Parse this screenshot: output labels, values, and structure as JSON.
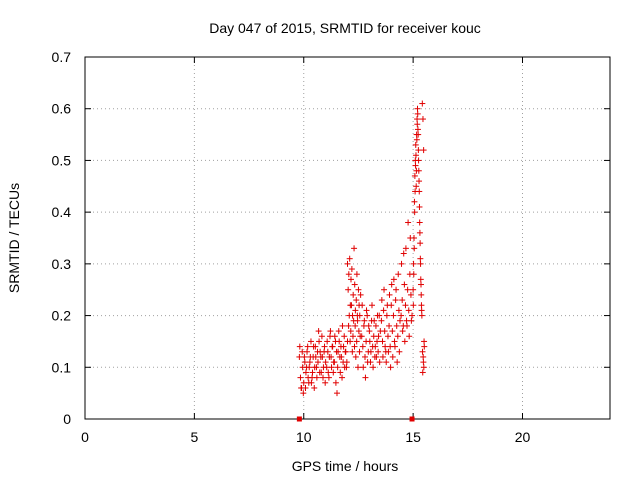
{
  "chart_data": {
    "type": "scatter",
    "title": "Day 047 of 2015, SRMTID for receiver kouc",
    "xlabel": "GPS time / hours",
    "ylabel": "SRMTID / TECUs",
    "xlim": [
      0,
      24
    ],
    "ylim": [
      0,
      0.7
    ],
    "xticks": [
      0,
      5,
      10,
      15,
      20
    ],
    "xtick_labels": [
      "0",
      "5",
      "10",
      "15",
      "20"
    ],
    "yticks": [
      0,
      0.1,
      0.2,
      0.3,
      0.4,
      0.5,
      0.6,
      0.7
    ],
    "ytick_labels": [
      "0",
      "0.1",
      "0.2",
      "0.3",
      "0.4",
      "0.5",
      "0.6",
      "0.7"
    ],
    "grid": true,
    "marker": "plus",
    "colors": {
      "series": "#e00000",
      "grid": "#a0a0a0",
      "axis": "#000000"
    },
    "series": [
      {
        "name": "SRMTID",
        "x": [
          9.8,
          9.85,
          9.9,
          9.95,
          10.0,
          10.05,
          10.1,
          10.15,
          10.2,
          10.25,
          10.3,
          10.35,
          10.4,
          10.45,
          10.5,
          10.55,
          10.6,
          10.65,
          10.7,
          10.75,
          10.8,
          10.85,
          10.9,
          10.95,
          11.0,
          9.82,
          9.88,
          9.93,
          9.98,
          10.03,
          10.08,
          10.13,
          10.18,
          10.23,
          10.28,
          10.33,
          10.38,
          10.43,
          10.48,
          10.53,
          10.58,
          10.63,
          10.68,
          10.73,
          10.78,
          10.83,
          10.88,
          10.93,
          10.98,
          11.05,
          11.1,
          11.15,
          11.2,
          11.25,
          11.3,
          11.35,
          11.4,
          11.45,
          11.5,
          11.55,
          11.6,
          11.65,
          11.7,
          11.75,
          11.8,
          11.85,
          11.9,
          11.95,
          12.0,
          11.07,
          11.12,
          11.17,
          11.22,
          11.27,
          11.32,
          11.37,
          11.42,
          11.47,
          11.52,
          11.57,
          11.62,
          11.67,
          11.72,
          11.77,
          11.82,
          11.87,
          11.92,
          11.97,
          12.0,
          12.03,
          12.06,
          12.1,
          12.13,
          12.16,
          12.2,
          12.23,
          12.26,
          12.3,
          12.33,
          12.36,
          12.4,
          12.43,
          12.46,
          12.5,
          12.53,
          12.56,
          12.6,
          12.05,
          12.08,
          12.12,
          12.15,
          12.18,
          12.22,
          12.25,
          12.28,
          12.32,
          12.35,
          12.38,
          12.42,
          12.45,
          12.48,
          12.52,
          12.55,
          12.58,
          12.65,
          12.7,
          12.75,
          12.8,
          12.85,
          12.9,
          12.95,
          13.0,
          13.05,
          13.1,
          13.15,
          13.2,
          13.25,
          13.3,
          13.35,
          13.4,
          13.45,
          13.5,
          12.67,
          12.72,
          12.77,
          12.82,
          12.87,
          12.92,
          12.97,
          13.02,
          13.07,
          13.12,
          13.17,
          13.22,
          13.27,
          13.32,
          13.37,
          13.42,
          13.47,
          13.55,
          13.6,
          13.65,
          13.7,
          13.75,
          13.8,
          13.85,
          13.9,
          13.95,
          14.0,
          14.05,
          14.1,
          14.15,
          14.2,
          14.25,
          14.3,
          14.35,
          14.4,
          13.57,
          13.62,
          13.67,
          13.72,
          13.77,
          13.82,
          13.87,
          13.92,
          13.97,
          14.02,
          14.07,
          14.12,
          14.17,
          14.22,
          14.27,
          14.32,
          14.37,
          14.45,
          14.5,
          14.55,
          14.6,
          14.65,
          14.7,
          14.75,
          14.8,
          14.85,
          14.9,
          14.95,
          14.47,
          14.52,
          14.57,
          14.62,
          14.67,
          14.72,
          14.77,
          14.82,
          14.87,
          14.92,
          15.0,
          15.02,
          15.04,
          15.06,
          15.08,
          15.1,
          15.12,
          15.14,
          15.16,
          15.18,
          15.2,
          15.22,
          15.24,
          15.26,
          15.28,
          15.3,
          15.32,
          15.34,
          15.36,
          15.38,
          15.4,
          15.01,
          15.03,
          15.05,
          15.07,
          15.09,
          15.11,
          15.13,
          15.15,
          15.17,
          15.19,
          15.21,
          15.23,
          15.25,
          15.27,
          15.29,
          15.31,
          15.33,
          15.35,
          15.37,
          15.39,
          15.42,
          15.45,
          15.48,
          15.5,
          15.43,
          15.46,
          15.49,
          15.51,
          15.44,
          15.47,
          9.8,
          14.95
        ],
        "y": [
          0.12,
          0.08,
          0.06,
          0.1,
          0.07,
          0.11,
          0.09,
          0.13,
          0.08,
          0.1,
          0.12,
          0.07,
          0.09,
          0.14,
          0.1,
          0.12,
          0.08,
          0.11,
          0.15,
          0.13,
          0.09,
          0.12,
          0.1,
          0.14,
          0.11,
          0.14,
          0.06,
          0.13,
          0.05,
          0.12,
          0.06,
          0.1,
          0.14,
          0.07,
          0.11,
          0.15,
          0.08,
          0.12,
          0.06,
          0.14,
          0.1,
          0.13,
          0.17,
          0.09,
          0.12,
          0.16,
          0.08,
          0.13,
          0.07,
          0.1,
          0.13,
          0.08,
          0.16,
          0.12,
          0.14,
          0.09,
          0.11,
          0.15,
          0.13,
          0.1,
          0.17,
          0.12,
          0.14,
          0.08,
          0.11,
          0.16,
          0.13,
          0.1,
          0.15,
          0.15,
          0.09,
          0.12,
          0.17,
          0.1,
          0.14,
          0.11,
          0.16,
          0.07,
          0.05,
          0.13,
          0.15,
          0.09,
          0.12,
          0.18,
          0.14,
          0.1,
          0.13,
          0.11,
          0.3,
          0.25,
          0.28,
          0.31,
          0.22,
          0.27,
          0.29,
          0.2,
          0.24,
          0.33,
          0.26,
          0.21,
          0.23,
          0.28,
          0.19,
          0.25,
          0.22,
          0.2,
          0.24,
          0.18,
          0.2,
          0.15,
          0.17,
          0.22,
          0.13,
          0.16,
          0.19,
          0.14,
          0.18,
          0.12,
          0.15,
          0.2,
          0.1,
          0.17,
          0.13,
          0.16,
          0.16,
          0.14,
          0.18,
          0.12,
          0.15,
          0.2,
          0.13,
          0.17,
          0.11,
          0.19,
          0.14,
          0.16,
          0.12,
          0.18,
          0.15,
          0.13,
          0.2,
          0.17,
          0.22,
          0.1,
          0.19,
          0.08,
          0.21,
          0.11,
          0.18,
          0.15,
          0.13,
          0.22,
          0.1,
          0.19,
          0.14,
          0.12,
          0.2,
          0.16,
          0.11,
          0.19,
          0.15,
          0.21,
          0.17,
          0.13,
          0.2,
          0.16,
          0.18,
          0.14,
          0.22,
          0.17,
          0.2,
          0.15,
          0.23,
          0.18,
          0.16,
          0.21,
          0.19,
          0.23,
          0.12,
          0.25,
          0.14,
          0.11,
          0.22,
          0.13,
          0.24,
          0.1,
          0.26,
          0.12,
          0.27,
          0.14,
          0.25,
          0.11,
          0.28,
          0.13,
          0.2,
          0.23,
          0.18,
          0.26,
          0.22,
          0.19,
          0.25,
          0.21,
          0.28,
          0.24,
          0.2,
          0.3,
          0.17,
          0.32,
          0.15,
          0.33,
          0.18,
          0.38,
          0.16,
          0.35,
          0.19,
          0.25,
          0.3,
          0.35,
          0.42,
          0.47,
          0.5,
          0.53,
          0.45,
          0.55,
          0.58,
          0.6,
          0.56,
          0.52,
          0.48,
          0.44,
          0.38,
          0.34,
          0.3,
          0.26,
          0.22,
          0.2,
          0.22,
          0.28,
          0.33,
          0.4,
          0.44,
          0.49,
          0.51,
          0.48,
          0.54,
          0.57,
          0.59,
          0.55,
          0.5,
          0.46,
          0.41,
          0.36,
          0.31,
          0.27,
          0.24,
          0.21,
          0.61,
          0.58,
          0.52,
          0.15,
          0.13,
          0.12,
          0.1,
          0.14,
          0.09,
          0.11,
          0.0,
          0.0
        ]
      }
    ]
  }
}
